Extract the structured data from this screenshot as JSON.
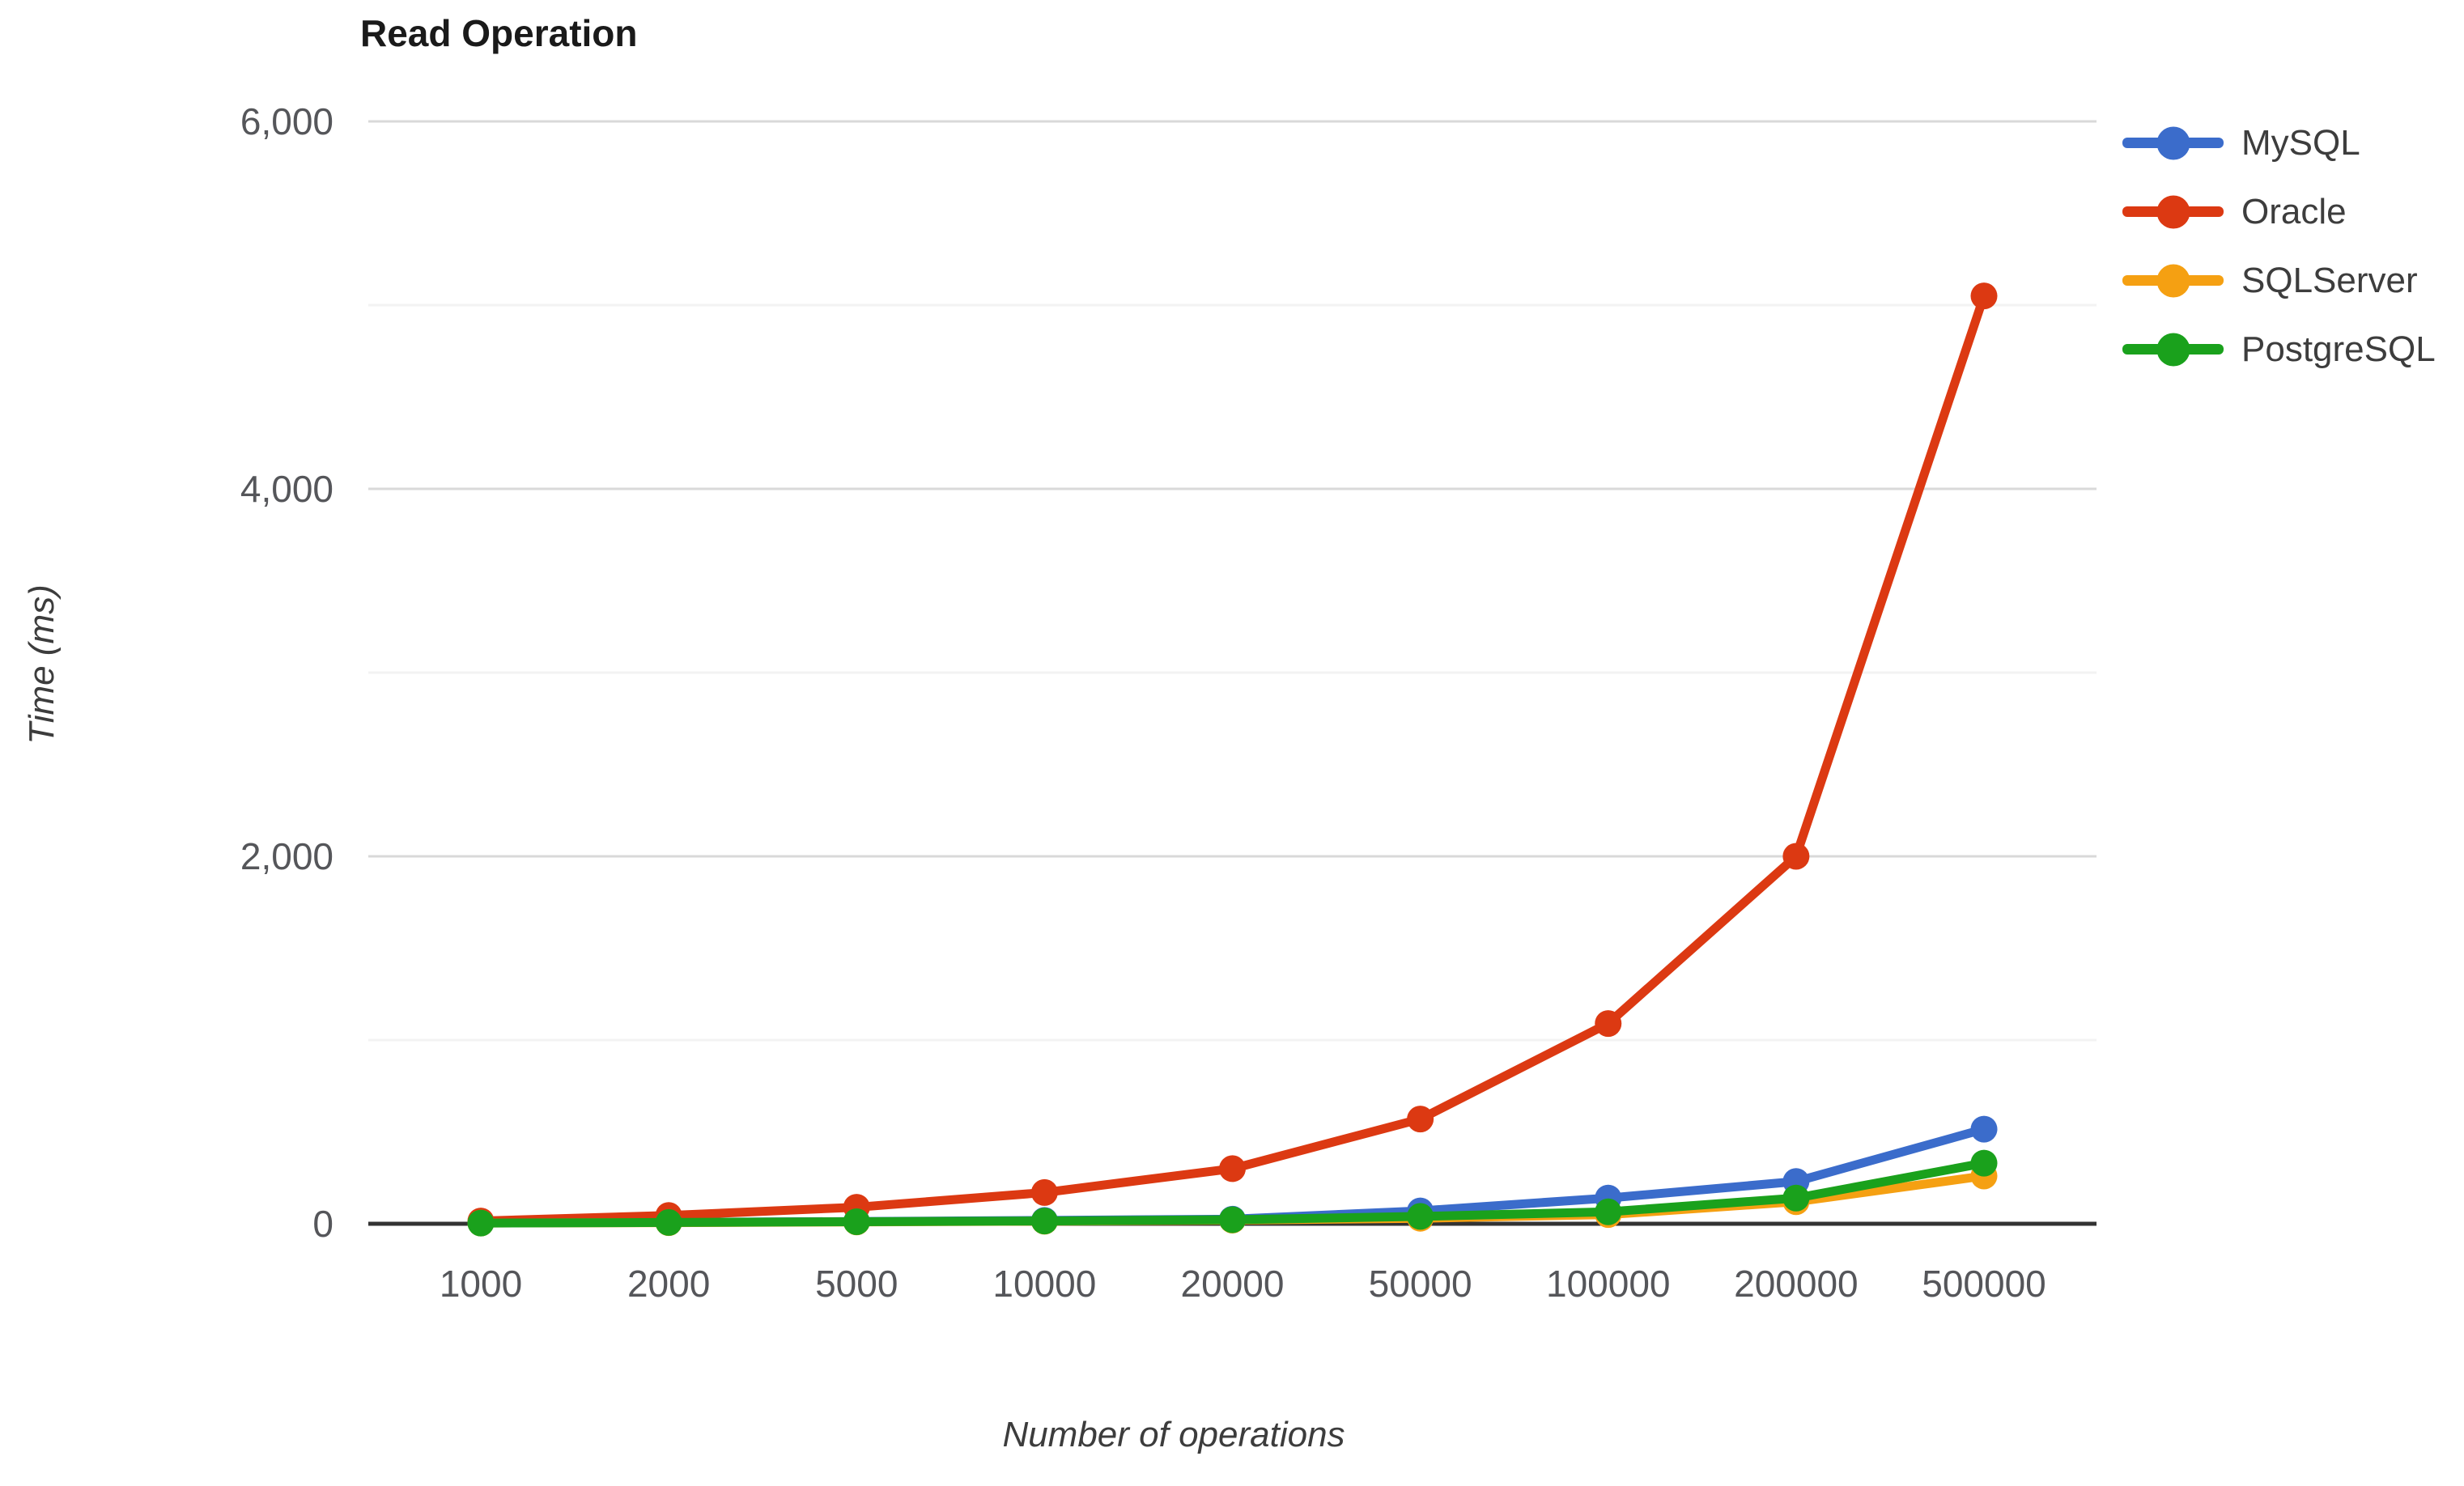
{
  "title": "Read Operation",
  "axes": {
    "y_title": "Time (ms)",
    "x_title": "Number of operations"
  },
  "legend": {
    "position": "right",
    "items": [
      "MySQL",
      "Oracle",
      "SQLServer",
      "PostgreSQL"
    ]
  },
  "colors": {
    "mysql_blue": "#3B6CCB",
    "oracle_red": "#DC3912",
    "sqlserver_orange": "#F5A012",
    "postgresql_green": "#1AA11C",
    "major_gridline": "#D9D9D9",
    "minor_gridline": "#F3F3F3",
    "baseline": "#333333",
    "tick_label": "#55565A"
  },
  "chart_data": {
    "type": "line",
    "title": "Read Operation",
    "xlabel": "Number of operations",
    "ylabel": "Time (ms)",
    "categories": [
      1000,
      2000,
      5000,
      10000,
      20000,
      50000,
      100000,
      200000,
      500000
    ],
    "category_labels": [
      "1000",
      "2000",
      "5000",
      "10000",
      "20000",
      "50000",
      "100000",
      "200000",
      "500000"
    ],
    "series": [
      {
        "name": "MySQL",
        "color": "#3B6CCB",
        "values": [
          5,
          8,
          12,
          18,
          25,
          70,
          140,
          230,
          515
        ]
      },
      {
        "name": "Oracle",
        "color": "#DC3912",
        "values": [
          15,
          45,
          90,
          170,
          300,
          570,
          1090,
          2000,
          5050
        ]
      },
      {
        "name": "SQLServer",
        "color": "#F5A012",
        "values": [
          4,
          6,
          10,
          14,
          20,
          30,
          50,
          120,
          260
        ]
      },
      {
        "name": "PostgreSQL",
        "color": "#1AA11C",
        "values": [
          4,
          7,
          11,
          15,
          22,
          40,
          65,
          140,
          330
        ]
      }
    ],
    "ylim": [
      0,
      6000
    ],
    "y_ticks": [
      0,
      2000,
      4000,
      6000
    ],
    "y_tick_labels": [
      "0",
      "2,000",
      "4,000",
      "6,000"
    ],
    "y_minor_tick_step": 1000,
    "grid": true,
    "legend_position": "right",
    "marker": "circle"
  }
}
